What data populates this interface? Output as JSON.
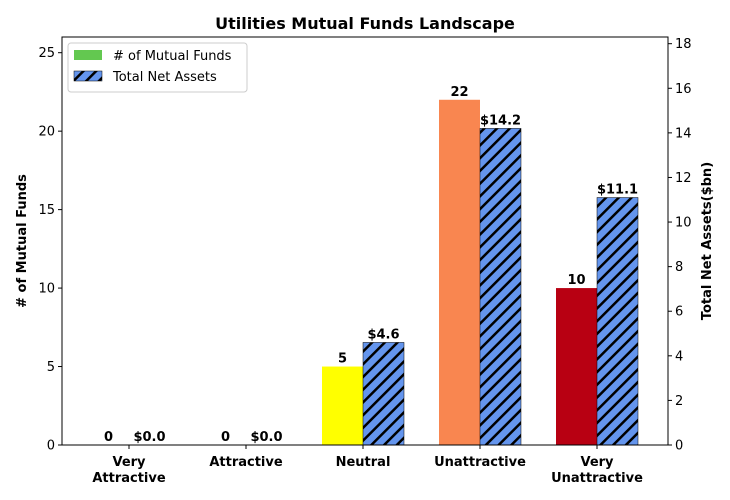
{
  "chart_data": {
    "type": "bar",
    "title": "Utilities Mutual Funds Landscape",
    "categories": [
      [
        "Very",
        "Attractive"
      ],
      [
        "Attractive"
      ],
      [
        "Neutral"
      ],
      [
        "Unattractive"
      ],
      [
        "Very",
        "Unattractive"
      ]
    ],
    "series": [
      {
        "name": "# of Mutual Funds",
        "axis": "left",
        "values": [
          0,
          0,
          5,
          22,
          10
        ],
        "labels": [
          "0",
          "0",
          "5",
          "22",
          "10"
        ],
        "colors": [
          "#63c850",
          "#63c850",
          "#ffff00",
          "#f98650",
          "#b80012"
        ],
        "legend_color": "#63c850"
      },
      {
        "name": "Total Net Assets",
        "axis": "right",
        "values": [
          0.0,
          0.0,
          4.6,
          14.2,
          11.1
        ],
        "labels": [
          "$0.0",
          "$0.0",
          "$4.6",
          "$14.2",
          "$11.1"
        ],
        "color": "#6495ed",
        "hatch": "diagonal"
      }
    ],
    "ylabel_left": "# of Mutual Funds",
    "ylabel_right": "Total Net Assets($bn)",
    "ylim_left": [
      0,
      26
    ],
    "ylim_right": [
      0,
      18.3
    ],
    "yticks_left": [
      0,
      5,
      10,
      15,
      20,
      25
    ],
    "yticks_right": [
      0,
      2,
      4,
      6,
      8,
      10,
      12,
      14,
      16,
      18
    ],
    "grid": false,
    "legend_position": "top-left"
  }
}
